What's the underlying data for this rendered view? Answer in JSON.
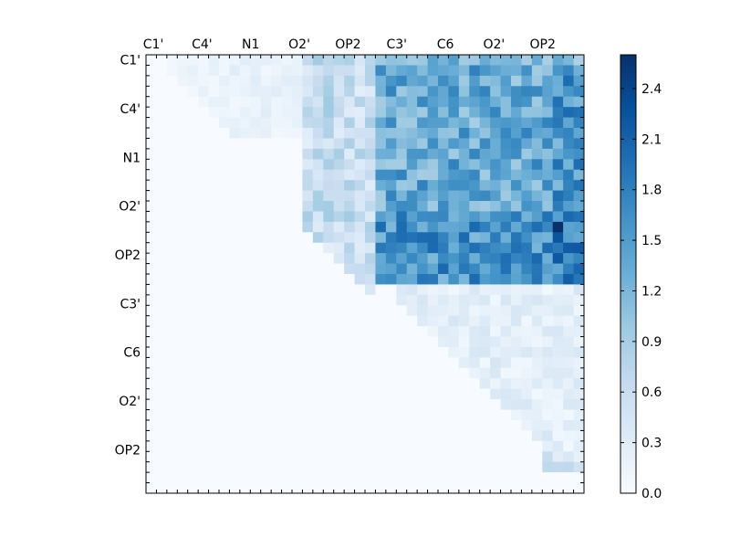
{
  "chart_data": {
    "type": "heatmap",
    "title": "",
    "xlabel": "",
    "ylabel": "",
    "x_tick_labels": [
      "C1'",
      "C4'",
      "N1",
      "O2'",
      "OP2",
      "C3'",
      "C6",
      "O2'",
      "OP2"
    ],
    "y_tick_labels": [
      "C1'",
      "C4'",
      "N1",
      "O2'",
      "OP2",
      "C3'",
      "C6",
      "O2'",
      "OP2"
    ],
    "grid_size": 42,
    "colormap": "Blues",
    "colorbar": {
      "min": 0.0,
      "max": 2.6,
      "ticks": [
        "0.0",
        "0.3",
        "0.6",
        "0.9",
        "1.2",
        "1.5",
        "1.8",
        "2.1",
        "2.4"
      ],
      "tick_values": [
        0.0,
        0.3,
        0.6,
        0.9,
        1.2,
        1.5,
        1.8,
        2.1,
        2.4
      ]
    },
    "blocks": [
      {
        "name": "top-left",
        "rows": [
          0,
          7
        ],
        "cols": [
          2,
          8
        ],
        "approx_value": 0.12
      },
      {
        "name": "top-left-2",
        "rows": [
          0,
          7
        ],
        "cols": [
          8,
          15
        ],
        "approx_value": 0.18
      },
      {
        "name": "mid-left",
        "rows": [
          0,
          23
        ],
        "cols": [
          15,
          22
        ],
        "approx_value": 0.55
      },
      {
        "name": "upper-right",
        "rows": [
          0,
          22
        ],
        "cols": [
          22,
          42
        ],
        "approx_value": 1.35
      },
      {
        "name": "lower-right-diag",
        "rows": [
          22,
          39
        ],
        "cols": [
          24,
          42
        ],
        "approx_value": 0.35
      }
    ],
    "max_cell": {
      "row": 16,
      "col": 39,
      "value": 2.6
    }
  }
}
